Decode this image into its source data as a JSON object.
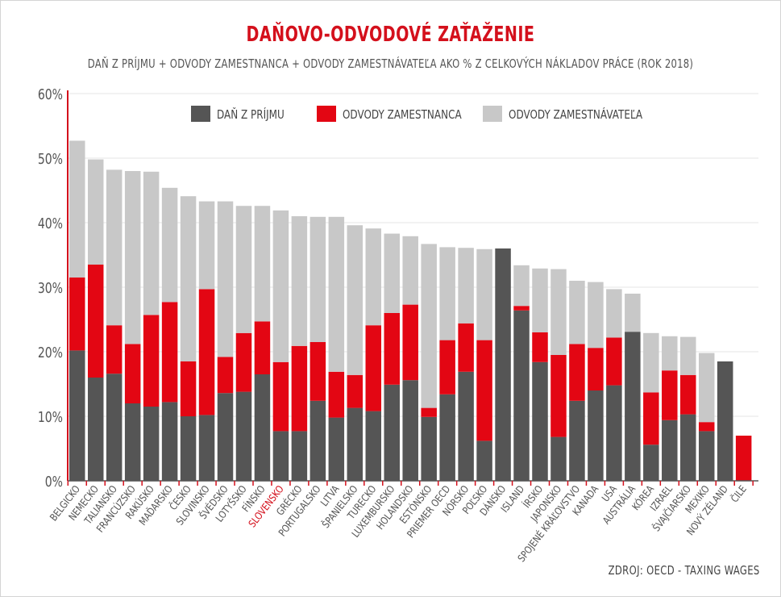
{
  "title": "DAŇOVO-ODVODOVÉ ZAŤAŽENIE",
  "subtitle": "DAŇ Z PRÍJMU + ODVODY ZAMESTNANCA + ODVODY ZAMESTNÁVATEĽA AKO % Z CELKOVÝCH NÁKLADOV PRÁCE (ROK 2018)",
  "source": "ZDROJ: OECD - TAXING WAGES",
  "colors": {
    "income_tax": "#555555",
    "employee": "#e30613",
    "employer": "#c8c8c8",
    "highlight_label": "#d4101c",
    "grid": "#e6e6e6",
    "axis": "#555555"
  },
  "chart_data": {
    "type": "bar",
    "stacked": true,
    "title": "DAŇOVO-ODVODOVÉ ZAŤAŽENIE",
    "subtitle": "DAŇ Z PRÍJMU + ODVODY ZAMESTNANCA + ODVODY ZAMESTNÁVATEĽA AKO % Z CELKOVÝCH NÁKLADOV PRÁCE (ROK 2018)",
    "xlabel": "",
    "ylabel": "",
    "ylim": [
      0,
      60
    ],
    "yticks": [
      0,
      10,
      20,
      30,
      40,
      50,
      60
    ],
    "ytick_labels": [
      "0%",
      "10%",
      "20%",
      "30%",
      "40%",
      "50%",
      "60%"
    ],
    "grid": true,
    "legend_position": "top",
    "highlight_category": "SLOVENSKO",
    "categories": [
      "BELGICKO",
      "NEMECKO",
      "TALIANSKO",
      "FRANCÚZSKO",
      "RAKÚSKO",
      "MAĎARSKO",
      "ČESKO",
      "SLOVINSKO",
      "ŠVÉDSKO",
      "LOTYŠSKO",
      "FÍNSKO",
      "SLOVENSKO",
      "GRÉCKO",
      "PORTUGALSKO",
      "LITVA",
      "ŠPANIELSKO",
      "TURECKO",
      "LUXEMBURSKO",
      "HOLANDSKO",
      "ESTÓNSKO",
      "PRIEMER OECD",
      "NÓRSKO",
      "POĽSKO",
      "DÁNSKO",
      "ISLAND",
      "ÍRSKO",
      "JAPONSKO",
      "SPOJENÉ KRÁĽOVSTVO",
      "KANADA",
      "USA",
      "AUSTRÁLIA",
      "KÓREA",
      "IZRAEL",
      "ŠVAJČIARSKO",
      "MEXIKO",
      "NOVÝ ZÉLAND",
      "ČILE"
    ],
    "series": [
      {
        "name": "DAŇ Z PRÍJMU",
        "values": [
          20.2,
          16.0,
          16.6,
          12.0,
          11.5,
          12.2,
          10.0,
          10.2,
          13.6,
          13.8,
          16.5,
          7.7,
          7.7,
          12.4,
          9.8,
          11.3,
          10.8,
          14.9,
          15.6,
          9.9,
          13.4,
          16.9,
          6.2,
          36.0,
          26.4,
          18.4,
          6.8,
          12.4,
          14.0,
          14.8,
          23.1,
          5.6,
          9.4,
          10.3,
          7.7,
          18.5,
          0.0
        ]
      },
      {
        "name": "ODVODY ZAMESTNANCA",
        "values": [
          11.3,
          17.5,
          7.5,
          9.2,
          14.2,
          15.5,
          8.5,
          19.5,
          5.6,
          9.1,
          8.2,
          10.7,
          13.2,
          9.1,
          7.1,
          5.1,
          13.3,
          11.1,
          11.7,
          1.4,
          8.4,
          7.5,
          15.6,
          0.0,
          0.7,
          4.6,
          12.7,
          8.8,
          6.6,
          7.4,
          0.0,
          8.1,
          7.7,
          6.1,
          1.4,
          0.0,
          7.0
        ]
      },
      {
        "name": "ODVODY ZAMESTNÁVATEĽA",
        "values": [
          21.2,
          16.3,
          24.1,
          26.8,
          22.2,
          17.7,
          25.6,
          13.6,
          24.1,
          19.7,
          17.9,
          23.5,
          20.1,
          19.4,
          24.0,
          23.2,
          15.0,
          12.3,
          10.6,
          25.4,
          14.4,
          11.7,
          14.1,
          0.0,
          6.3,
          9.9,
          13.3,
          9.8,
          10.2,
          7.5,
          5.9,
          9.2,
          5.3,
          5.9,
          10.7,
          0.0,
          0.0
        ]
      }
    ]
  }
}
